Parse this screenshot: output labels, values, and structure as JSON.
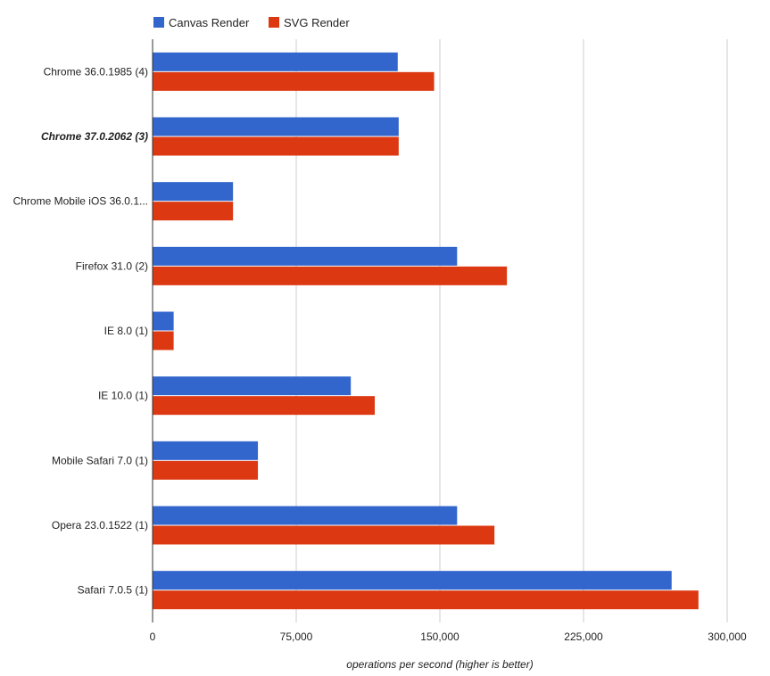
{
  "chart_data": {
    "type": "bar",
    "orientation": "horizontal",
    "title": "",
    "xlabel": "operations per second (higher is better)",
    "ylabel": "",
    "xlim": [
      0,
      300000
    ],
    "x_ticks": [
      0,
      75000,
      150000,
      225000,
      300000
    ],
    "x_tick_labels": [
      "0",
      "75,000",
      "150,000",
      "225,000",
      "300,000"
    ],
    "grid": "vertical",
    "legend_position": "top-left",
    "categories": [
      "Chrome 36.0.1985 (4)",
      "Chrome 37.0.2062 (3)",
      "Chrome Mobile iOS 36.0.1...",
      "Firefox 31.0 (2)",
      "IE 8.0 (1)",
      "IE 10.0 (1)",
      "Mobile Safari 7.0 (1)",
      "Opera 23.0.1522 (1)",
      "Safari 7.0.5 (1)"
    ],
    "highlighted_category": "Chrome 37.0.2062 (3)",
    "series": [
      {
        "name": "Canvas Render",
        "color": "#3366cc",
        "values": [
          128000,
          128500,
          42000,
          159000,
          11000,
          103500,
          55000,
          159000,
          271000
        ]
      },
      {
        "name": "SVG Render",
        "color": "#dc3912",
        "values": [
          147000,
          128500,
          42000,
          185000,
          11000,
          116000,
          55000,
          178500,
          285000
        ]
      }
    ]
  }
}
